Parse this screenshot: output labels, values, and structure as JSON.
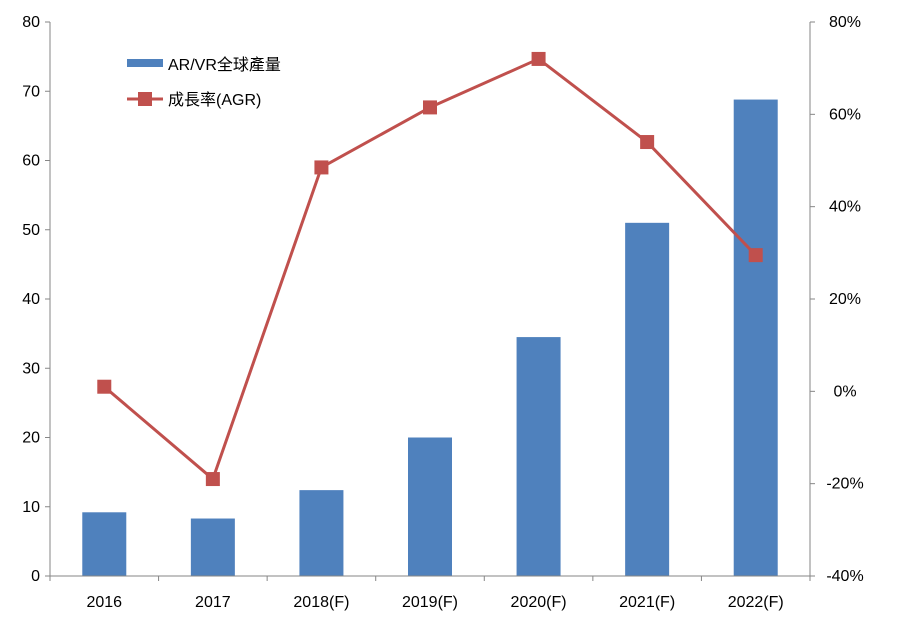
{
  "chart_data": {
    "type": "bar",
    "categories": [
      "2016",
      "2017",
      "2018(F)",
      "2019(F)",
      "2020(F)",
      "2021(F)",
      "2022(F)"
    ],
    "series": [
      {
        "name": "AR/VR全球產量",
        "type": "bar",
        "axis": "left",
        "values": [
          9.2,
          8.3,
          12.4,
          20.0,
          34.5,
          51.0,
          68.8
        ],
        "color": "#4f81bd"
      },
      {
        "name": "成長率(AGR)",
        "type": "line",
        "axis": "right",
        "values": [
          1,
          -19,
          48.5,
          61.5,
          72,
          54,
          29.5
        ],
        "color": "#c0504d"
      }
    ],
    "left_axis": {
      "min": 0,
      "max": 80,
      "ticks": [
        "0",
        "10",
        "20",
        "30",
        "40",
        "50",
        "60",
        "70",
        "80"
      ]
    },
    "right_axis": {
      "min": -40,
      "max": 80,
      "ticks": [
        "-40%",
        "-20%",
        "0%",
        "20%",
        "40%",
        "60%",
        "80%"
      ]
    },
    "legend": {
      "placement": "top-left",
      "items": [
        "AR/VR全球產量",
        "成長率(AGR)"
      ]
    },
    "grid": false
  }
}
